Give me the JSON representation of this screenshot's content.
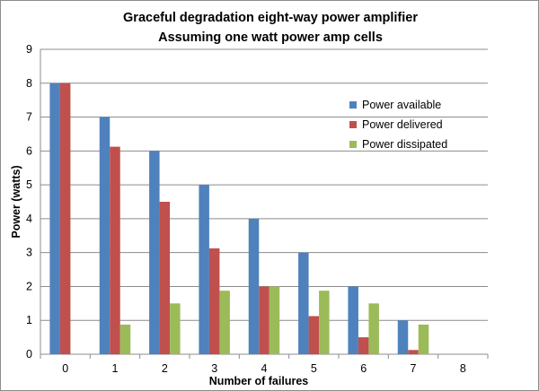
{
  "chart_data": {
    "type": "bar",
    "title": "Graceful degradation eight-way power amplifier",
    "subtitle": "Assuming one watt power amp cells",
    "xlabel": "Number of failures",
    "ylabel": "Power (watts)",
    "categories": [
      "0",
      "1",
      "2",
      "3",
      "4",
      "5",
      "6",
      "7",
      "8"
    ],
    "ylim": [
      0,
      9
    ],
    "yticks": [
      0,
      1,
      2,
      3,
      4,
      5,
      6,
      7,
      8,
      9
    ],
    "grid": true,
    "legend_position": "right",
    "series": [
      {
        "name": "Power available",
        "color": "#4F81BD",
        "values": [
          8,
          7,
          6,
          5,
          4,
          3,
          2,
          1,
          0
        ]
      },
      {
        "name": "Power delivered",
        "color": "#C0504D",
        "values": [
          8,
          6.125,
          4.5,
          3.125,
          2,
          1.125,
          0.5,
          0.125,
          0
        ]
      },
      {
        "name": "Power dissipated",
        "color": "#9BBB59",
        "values": [
          0,
          0.875,
          1.5,
          1.875,
          2,
          1.875,
          1.5,
          0.875,
          0
        ]
      }
    ]
  }
}
